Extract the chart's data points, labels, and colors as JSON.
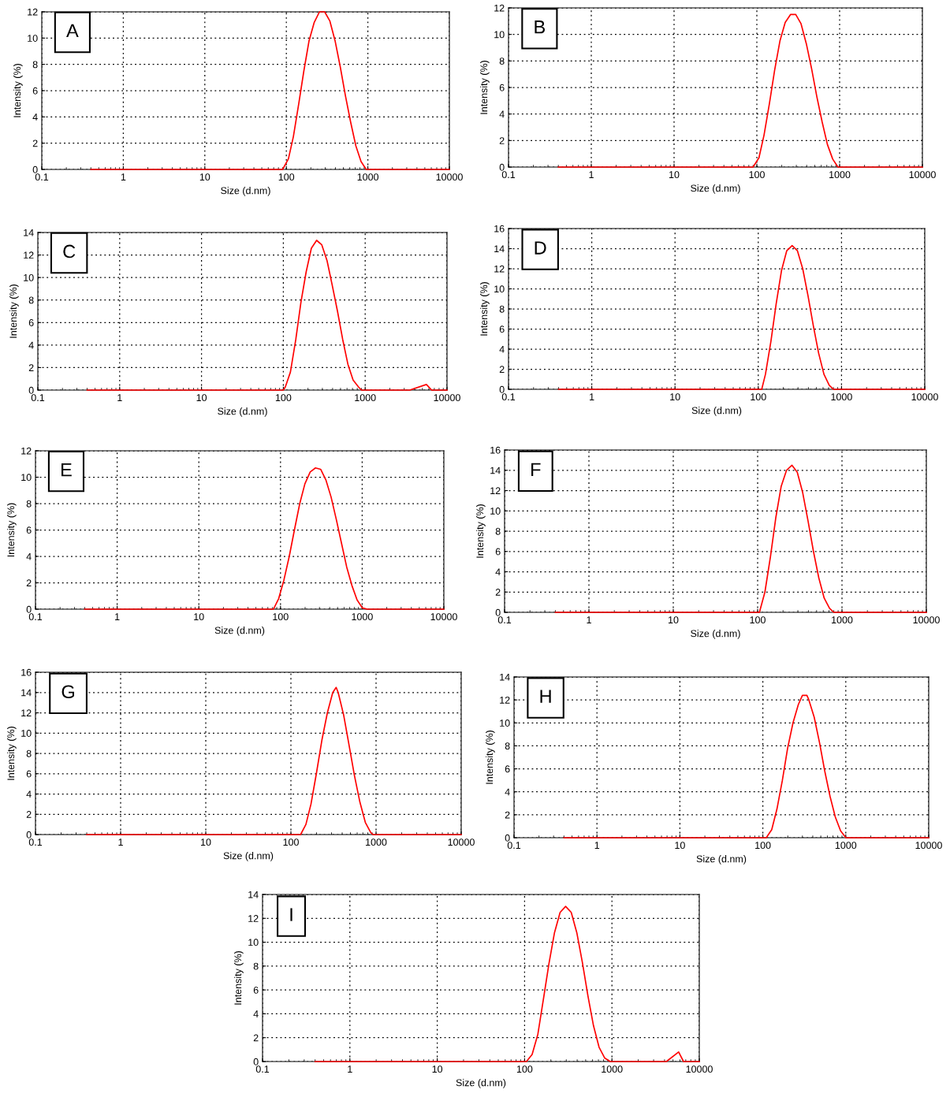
{
  "chart_data": [
    {
      "type": "line",
      "annotations": [
        "A"
      ],
      "xlabel": "Size (d.nm)",
      "ylabel": "Intensity (%)",
      "log": "x",
      "grid": true,
      "xlim": [
        0.1,
        10000
      ],
      "xticks": [
        0.1,
        1,
        10,
        100,
        1000,
        10000
      ],
      "ylim": [
        0,
        12
      ],
      "yticks": [
        0,
        2,
        4,
        6,
        8,
        10,
        12
      ],
      "series": [
        {
          "color": "#ff0000",
          "x": [
            0.4,
            90,
            106,
            122,
            142,
            164,
            190,
            220,
            255,
            295,
            342,
            396,
            459,
            531,
            615,
            712,
            825,
            955,
            10000
          ],
          "values": [
            0,
            0,
            0.8,
            2.5,
            5,
            7.5,
            9.8,
            11.2,
            12,
            12,
            11.3,
            9.8,
            7.8,
            5.6,
            3.6,
            1.8,
            0.6,
            0,
            0
          ]
        }
      ]
    },
    {
      "type": "line",
      "annotations": [
        "B"
      ],
      "xlabel": "Size (d.nm)",
      "ylabel": "Intensity (%)",
      "log": "x",
      "grid": true,
      "xlim": [
        0.1,
        10000
      ],
      "xticks": [
        0.1,
        1,
        10,
        100,
        1000,
        10000
      ],
      "ylim": [
        0,
        12
      ],
      "yticks": [
        0,
        2,
        4,
        6,
        8,
        10,
        12
      ],
      "series": [
        {
          "color": "#ff0000",
          "x": [
            0.4,
            90,
            106,
            122,
            142,
            164,
            190,
            220,
            255,
            295,
            342,
            396,
            459,
            531,
            615,
            712,
            825,
            955,
            10000
          ],
          "values": [
            0,
            0,
            0.7,
            2.4,
            4.8,
            7.3,
            9.5,
            10.9,
            11.5,
            11.5,
            10.8,
            9.3,
            7.4,
            5.3,
            3.4,
            1.7,
            0.6,
            0,
            0
          ]
        }
      ]
    },
    {
      "type": "line",
      "annotations": [
        "C"
      ],
      "xlabel": "Size (d.nm)",
      "ylabel": "Intensity (%)",
      "log": "x",
      "grid": true,
      "xlim": [
        0.1,
        10000
      ],
      "xticks": [
        0.1,
        1,
        10,
        100,
        1000,
        10000
      ],
      "ylim": [
        0,
        14
      ],
      "yticks": [
        0,
        2,
        4,
        6,
        8,
        10,
        12,
        14
      ],
      "series": [
        {
          "color": "#ff0000",
          "x": [
            0.4,
            100,
            106,
            122,
            142,
            164,
            190,
            220,
            255,
            295,
            342,
            396,
            459,
            531,
            615,
            712,
            825,
            900,
            3500,
            5600,
            6500,
            10000
          ],
          "values": [
            0,
            0,
            0.3,
            1.6,
            4.5,
            7.8,
            10.5,
            12.6,
            13.3,
            12.9,
            11.5,
            9.3,
            7.0,
            4.5,
            2.3,
            0.9,
            0.3,
            0,
            0,
            0.5,
            0,
            0
          ]
        }
      ]
    },
    {
      "type": "line",
      "annotations": [
        "D"
      ],
      "xlabel": "Size (d.nm)",
      "ylabel": "Intensity (%)",
      "log": "x",
      "grid": true,
      "xlim": [
        0.1,
        10000
      ],
      "xticks": [
        0.1,
        1,
        10,
        100,
        1000,
        10000
      ],
      "ylim": [
        0,
        16
      ],
      "yticks": [
        0,
        2,
        4,
        6,
        8,
        10,
        12,
        14,
        16
      ],
      "series": [
        {
          "color": "#ff0000",
          "x": [
            0.4,
            110,
            122,
            142,
            164,
            190,
            220,
            255,
            295,
            342,
            396,
            459,
            531,
            615,
            712,
            800,
            10000
          ],
          "values": [
            0,
            0,
            1.5,
            4.8,
            8.5,
            11.8,
            13.8,
            14.3,
            13.8,
            12,
            9.3,
            6.3,
            3.6,
            1.5,
            0.4,
            0,
            0
          ]
        }
      ]
    },
    {
      "type": "line",
      "annotations": [
        "E"
      ],
      "xlabel": "Size (d.nm)",
      "ylabel": "Intensity (%)",
      "log": "x",
      "grid": true,
      "xlim": [
        0.1,
        10000
      ],
      "xticks": [
        0.1,
        1,
        10,
        100,
        1000,
        10000
      ],
      "ylim": [
        0,
        12
      ],
      "yticks": [
        0,
        2,
        4,
        6,
        8,
        10,
        12
      ],
      "series": [
        {
          "color": "#ff0000",
          "x": [
            0.4,
            82,
            95,
            110,
            128,
            148,
            172,
            199,
            231,
            268,
            310,
            359,
            416,
            482,
            558,
            646,
            748,
            866,
            1003,
            1160,
            10000
          ],
          "values": [
            0,
            0,
            0.8,
            2.2,
            4.0,
            6.0,
            8.0,
            9.5,
            10.4,
            10.7,
            10.6,
            9.8,
            8.5,
            6.8,
            5.0,
            3.2,
            1.8,
            0.7,
            0.1,
            0,
            0
          ]
        }
      ]
    },
    {
      "type": "line",
      "annotations": [
        "F"
      ],
      "xlabel": "Size (d.nm)",
      "ylabel": "Intensity (%)",
      "log": "x",
      "grid": true,
      "xlim": [
        0.1,
        10000
      ],
      "xticks": [
        0.1,
        1,
        10,
        100,
        1000,
        10000
      ],
      "ylim": [
        0,
        16
      ],
      "yticks": [
        0,
        2,
        4,
        6,
        8,
        10,
        12,
        14,
        16
      ],
      "series": [
        {
          "color": "#ff0000",
          "x": [
            0.4,
            105,
            122,
            142,
            164,
            190,
            220,
            255,
            295,
            342,
            396,
            459,
            531,
            615,
            712,
            800,
            10000
          ],
          "values": [
            0,
            0,
            2.0,
            5.5,
            9.3,
            12.4,
            14.0,
            14.5,
            13.8,
            11.8,
            9.0,
            6.0,
            3.4,
            1.4,
            0.4,
            0,
            0
          ]
        }
      ]
    },
    {
      "type": "line",
      "annotations": [
        "G"
      ],
      "xlabel": "Size (d.nm)",
      "ylabel": "Intensity (%)",
      "log": "x",
      "grid": true,
      "xlim": [
        0.1,
        10000
      ],
      "xticks": [
        0.1,
        1,
        10,
        100,
        1000,
        10000
      ],
      "ylim": [
        0,
        16
      ],
      "yticks": [
        0,
        2,
        4,
        6,
        8,
        10,
        12,
        14,
        16
      ],
      "series": [
        {
          "color": "#ff0000",
          "x": [
            0.4,
            130,
            150,
            172,
            199,
            231,
            268,
            310,
            340,
            359,
            416,
            482,
            558,
            646,
            748,
            866,
            920,
            10000
          ],
          "values": [
            0,
            0,
            1.0,
            3.0,
            6.0,
            9.3,
            12.0,
            14.0,
            14.5,
            14.0,
            11.8,
            8.8,
            5.8,
            3.2,
            1.2,
            0.2,
            0,
            0
          ]
        }
      ]
    },
    {
      "type": "line",
      "annotations": [
        "H"
      ],
      "xlabel": "Size (d.nm)",
      "ylabel": "Intensity (%)",
      "log": "x",
      "grid": true,
      "xlim": [
        0.1,
        10000
      ],
      "xticks": [
        0.1,
        1,
        10,
        100,
        1000,
        10000
      ],
      "ylim": [
        0,
        14
      ],
      "yticks": [
        0,
        2,
        4,
        6,
        8,
        10,
        12,
        14
      ],
      "series": [
        {
          "color": "#ff0000",
          "x": [
            0.4,
            110,
            128,
            148,
            172,
            199,
            231,
            268,
            300,
            340,
            359,
            416,
            482,
            558,
            646,
            748,
            866,
            1003,
            10000
          ],
          "values": [
            0,
            0,
            0.7,
            2.5,
            5.0,
            7.8,
            10.0,
            11.6,
            12.4,
            12.4,
            12.0,
            10.5,
            8.3,
            5.8,
            3.6,
            1.8,
            0.6,
            0,
            0
          ]
        }
      ]
    },
    {
      "type": "line",
      "annotations": [
        "I"
      ],
      "xlabel": "Size (d.nm)",
      "ylabel": "Intensity (%)",
      "log": "x",
      "grid": true,
      "xlim": [
        0.1,
        10000
      ],
      "xticks": [
        0.1,
        1,
        10,
        100,
        1000,
        10000
      ],
      "ylim": [
        0,
        14
      ],
      "yticks": [
        0,
        2,
        4,
        6,
        8,
        10,
        12,
        14
      ],
      "series": [
        {
          "color": "#ff0000",
          "x": [
            0.4,
            105,
            122,
            142,
            164,
            190,
            220,
            255,
            295,
            342,
            396,
            459,
            531,
            615,
            712,
            825,
            955,
            4200,
            5800,
            6600,
            10000
          ],
          "values": [
            0,
            0,
            0.6,
            2.3,
            5.2,
            8.2,
            10.8,
            12.5,
            13.0,
            12.5,
            10.8,
            8.3,
            5.5,
            3.0,
            1.2,
            0.3,
            0,
            0,
            0.8,
            0,
            0
          ]
        }
      ]
    }
  ]
}
